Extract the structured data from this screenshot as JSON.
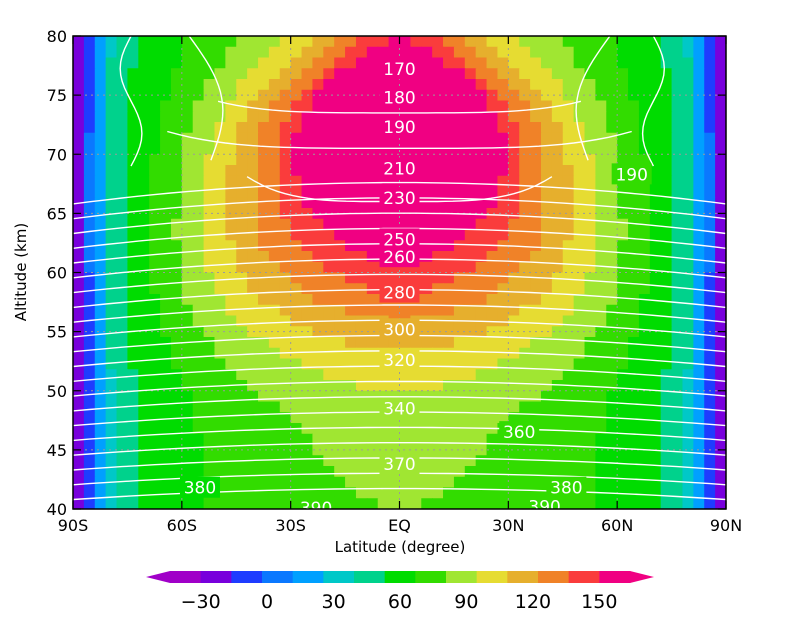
{
  "chart_data": {
    "type": "heatmap",
    "xlabel": "Latitude (degree)",
    "ylabel": "Altitude (km)",
    "xlim": [
      -90,
      90
    ],
    "ylim": [
      40,
      80
    ],
    "grid": true,
    "x_ticks": [
      {
        "value": -90,
        "label": "90S"
      },
      {
        "value": -60,
        "label": "60S"
      },
      {
        "value": -30,
        "label": "30S"
      },
      {
        "value": 0,
        "label": "EQ"
      },
      {
        "value": 30,
        "label": "30N"
      },
      {
        "value": 60,
        "label": "60N"
      },
      {
        "value": 90,
        "label": "90N"
      }
    ],
    "y_ticks": [
      {
        "value": 40,
        "label": "40"
      },
      {
        "value": 45,
        "label": "45"
      },
      {
        "value": 50,
        "label": "50"
      },
      {
        "value": 55,
        "label": "55"
      },
      {
        "value": 60,
        "label": "60"
      },
      {
        "value": 65,
        "label": "65"
      },
      {
        "value": 70,
        "label": "70"
      },
      {
        "value": 75,
        "label": "75"
      },
      {
        "value": 80,
        "label": "80"
      }
    ],
    "filled_field": {
      "levels": [
        -30,
        -20,
        -10,
        0,
        10,
        20,
        30,
        40,
        50,
        60,
        70,
        80,
        90,
        100,
        110,
        120,
        130,
        140,
        150
      ],
      "colors": [
        "#a000c8",
        "#7800dc",
        "#1e3cff",
        "#0a78ff",
        "#00a0ff",
        "#00c8c8",
        "#00d28c",
        "#00dc00",
        "#32dc00",
        "#a0e632",
        "#e6dc32",
        "#e6af2d",
        "#f08228",
        "#fa3c3c",
        "#f00082"
      ],
      "colorbar_ticks": [
        {
          "value": -30,
          "label": "−30"
        },
        {
          "value": 0,
          "label": "0"
        },
        {
          "value": 30,
          "label": "30"
        },
        {
          "value": 60,
          "label": "60"
        },
        {
          "value": 90,
          "label": "90"
        },
        {
          "value": 120,
          "label": "120"
        },
        {
          "value": 150,
          "label": "150"
        }
      ]
    },
    "contour_labels": [
      {
        "text": "170",
        "lat": 0,
        "alt": 77.2
      },
      {
        "text": "180",
        "lat": 0,
        "alt": 74.8
      },
      {
        "text": "190",
        "lat": 0,
        "alt": 72.3
      },
      {
        "text": "190",
        "lat": 64,
        "alt": 68.3
      },
      {
        "text": "210",
        "lat": 0,
        "alt": 68.8
      },
      {
        "text": "230",
        "lat": 0,
        "alt": 66.3
      },
      {
        "text": "250",
        "lat": 0,
        "alt": 62.8
      },
      {
        "text": "260",
        "lat": 0,
        "alt": 61.3
      },
      {
        "text": "280",
        "lat": 0,
        "alt": 58.3
      },
      {
        "text": "300",
        "lat": 0,
        "alt": 55.2
      },
      {
        "text": "320",
        "lat": 0,
        "alt": 52.6
      },
      {
        "text": "340",
        "lat": 0,
        "alt": 48.5
      },
      {
        "text": "360",
        "lat": 33,
        "alt": 46.5
      },
      {
        "text": "370",
        "lat": 0,
        "alt": 43.8
      },
      {
        "text": "380",
        "lat": -55,
        "alt": 41.8
      },
      {
        "text": "380",
        "lat": 46,
        "alt": 41.8
      },
      {
        "text": "390",
        "lat": -23,
        "alt": 40.1
      },
      {
        "text": "390",
        "lat": 40,
        "alt": 40.2
      }
    ]
  }
}
